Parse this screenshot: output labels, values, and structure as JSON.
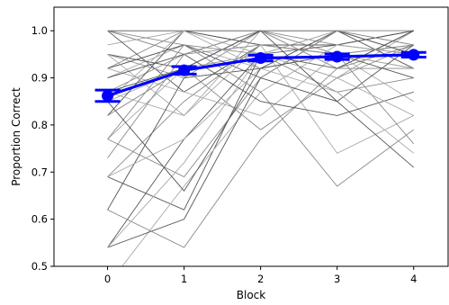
{
  "chart_data": {
    "type": "line",
    "title": "",
    "xlabel": "Block",
    "ylabel": "Proportion Correct",
    "x": [
      0,
      1,
      2,
      3,
      4
    ],
    "xlim": [
      -0.7,
      4.45
    ],
    "ylim": [
      0.5,
      1.05
    ],
    "xticks": [
      "0",
      "1",
      "2",
      "3",
      "4"
    ],
    "yticks": [
      "0.5",
      "0.6",
      "0.7",
      "0.8",
      "0.9",
      "1.0"
    ],
    "grid": false,
    "legend": "none",
    "mean_series": {
      "color": "#0000ff",
      "values": [
        0.862,
        0.916,
        0.942,
        0.945,
        0.949
      ],
      "errors": [
        0.012,
        0.008,
        0.006,
        0.006,
        0.005
      ]
    },
    "individual_series_colors": [
      "#555555",
      "#8a8a8a",
      "#a8a8a8"
    ],
    "individual_series": [
      [
        1.0,
        1.0,
        1.0,
        1.0,
        1.0
      ],
      [
        1.0,
        0.95,
        1.0,
        0.97,
        1.0
      ],
      [
        0.97,
        1.0,
        0.95,
        1.0,
        0.97
      ],
      [
        0.95,
        0.92,
        1.0,
        0.92,
        1.0
      ],
      [
        0.92,
        1.0,
        0.97,
        0.95,
        0.92
      ],
      [
        0.9,
        0.97,
        0.92,
        1.0,
        0.95
      ],
      [
        1.0,
        0.87,
        0.97,
        0.97,
        1.0
      ],
      [
        0.87,
        0.95,
        1.0,
        0.92,
        0.97
      ],
      [
        0.85,
        0.92,
        0.95,
        1.0,
        1.0
      ],
      [
        0.82,
        1.0,
        0.97,
        0.97,
        0.95
      ],
      [
        0.95,
        0.9,
        1.0,
        0.95,
        0.97
      ],
      [
        0.77,
        0.92,
        0.95,
        0.9,
        1.0
      ],
      [
        0.92,
        0.97,
        0.9,
        1.0,
        0.92
      ],
      [
        0.69,
        0.85,
        0.97,
        0.95,
        0.97
      ],
      [
        0.87,
        0.82,
        1.0,
        0.92,
        1.0
      ],
      [
        0.62,
        0.9,
        0.92,
        1.0,
        0.95
      ],
      [
        1.0,
        0.97,
        0.95,
        0.87,
        0.9
      ],
      [
        0.85,
        1.0,
        0.92,
        0.95,
        0.85
      ],
      [
        0.54,
        0.77,
        0.95,
        0.97,
        1.0
      ],
      [
        0.77,
        0.69,
        0.9,
        1.0,
        0.97
      ],
      [
        0.92,
        0.87,
        0.82,
        0.95,
        0.92
      ],
      [
        0.69,
        0.62,
        0.95,
        0.92,
        1.0
      ],
      [
        0.82,
        0.92,
        0.79,
        0.9,
        0.97
      ],
      [
        0.46,
        0.67,
        0.87,
        0.97,
        0.95
      ],
      [
        0.54,
        0.6,
        0.9,
        0.85,
        0.97
      ],
      [
        0.77,
        0.97,
        0.87,
        0.67,
        0.79
      ],
      [
        0.95,
        0.82,
        0.97,
        0.74,
        0.82
      ],
      [
        0.87,
        0.92,
        1.0,
        0.85,
        0.71
      ],
      [
        0.62,
        0.54,
        0.77,
        0.92,
        0.92
      ],
      [
        0.69,
        0.77,
        0.92,
        0.87,
        0.74
      ],
      [
        0.9,
        0.95,
        0.85,
        0.82,
        0.87
      ],
      [
        0.73,
        0.95,
        0.97,
        0.95,
        0.76
      ],
      [
        0.54,
        0.72,
        0.95,
        0.9,
        0.82
      ],
      [
        0.85,
        0.66,
        0.92,
        0.95,
        0.9
      ]
    ]
  }
}
